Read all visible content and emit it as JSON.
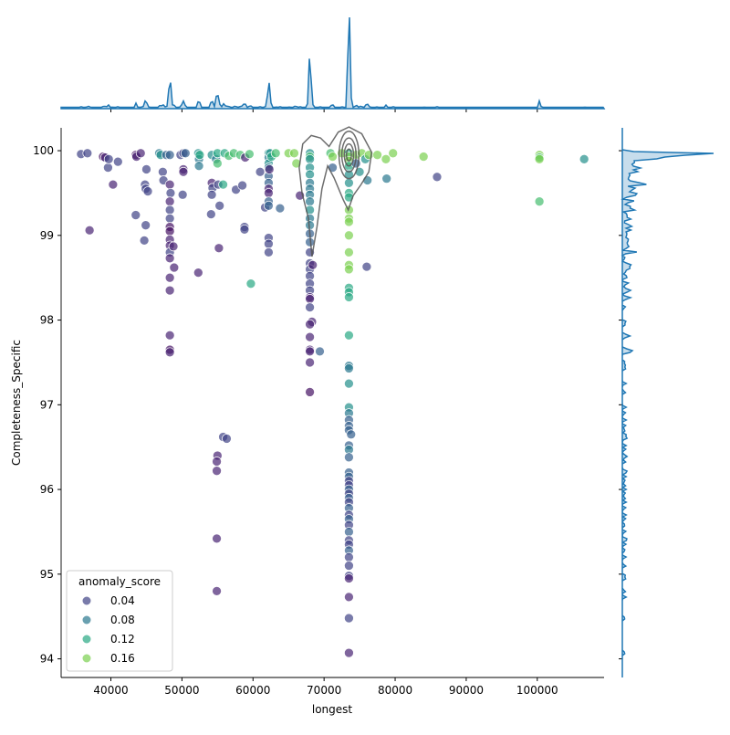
{
  "chart_data": {
    "type": "scatter",
    "xlabel": "longest",
    "ylabel": "Completeness_Specific",
    "xlim": [
      33000,
      109400
    ],
    "ylim": [
      93.78,
      100.27
    ],
    "xticks": [
      40000,
      50000,
      60000,
      70000,
      80000,
      90000,
      100000
    ],
    "xtick_labels": [
      "40000",
      "50000",
      "60000",
      "70000",
      "80000",
      "90000",
      "100000"
    ],
    "yticks": [
      94,
      95,
      96,
      97,
      98,
      99,
      100
    ],
    "ytick_labels": [
      "94",
      "95",
      "96",
      "97",
      "98",
      "99",
      "100"
    ],
    "grid": false,
    "colormap": "viridis",
    "hue_range": [
      0,
      0.2
    ],
    "legend": {
      "title": "anomaly_score",
      "placement": "lower-left",
      "entries": [
        {
          "label": "0.04",
          "value": 0.04
        },
        {
          "label": "0.08",
          "value": 0.08
        },
        {
          "label": "0.12",
          "value": 0.12
        },
        {
          "label": "0.16",
          "value": 0.16
        }
      ]
    },
    "kde_line_color": "#1f77b4",
    "contour_color": "#555555",
    "points": [
      [
        35800,
        99.96,
        0.04
      ],
      [
        36700,
        99.97,
        0.04
      ],
      [
        37000,
        99.06,
        0.02
      ],
      [
        38900,
        99.93,
        0.01
      ],
      [
        39200,
        99.92,
        0.02
      ],
      [
        39600,
        99.8,
        0.04
      ],
      [
        39700,
        99.9,
        0.04
      ],
      [
        40300,
        99.6,
        0.02
      ],
      [
        41000,
        99.87,
        0.04
      ],
      [
        43500,
        99.95,
        0.01
      ],
      [
        43600,
        99.93,
        0.02
      ],
      [
        43500,
        99.24,
        0.04
      ],
      [
        44200,
        99.97,
        0.02
      ],
      [
        44800,
        99.6,
        0.04
      ],
      [
        44900,
        99.55,
        0.04
      ],
      [
        44700,
        98.94,
        0.04
      ],
      [
        44900,
        99.12,
        0.04
      ],
      [
        45000,
        99.78,
        0.04
      ],
      [
        45200,
        99.52,
        0.04
      ],
      [
        46800,
        99.97,
        0.08
      ],
      [
        47000,
        99.95,
        0.1
      ],
      [
        47300,
        99.75,
        0.04
      ],
      [
        47400,
        99.65,
        0.04
      ],
      [
        47800,
        99.95,
        0.06
      ],
      [
        48300,
        99.95,
        0.06
      ],
      [
        48300,
        99.6,
        0.02
      ],
      [
        48400,
        99.5,
        0.04
      ],
      [
        48300,
        99.4,
        0.02
      ],
      [
        48300,
        99.3,
        0.04
      ],
      [
        48300,
        99.2,
        0.04
      ],
      [
        48300,
        99.1,
        0.01
      ],
      [
        48300,
        99.05,
        0.01
      ],
      [
        48300,
        98.95,
        0.02
      ],
      [
        48300,
        98.88,
        0.02
      ],
      [
        48300,
        98.8,
        0.04
      ],
      [
        48300,
        98.73,
        0.02
      ],
      [
        48300,
        98.5,
        0.02
      ],
      [
        48300,
        98.35,
        0.02
      ],
      [
        48300,
        97.82,
        0.02
      ],
      [
        48300,
        97.65,
        0.01
      ],
      [
        48300,
        97.62,
        0.02
      ],
      [
        48800,
        98.87,
        0.02
      ],
      [
        48900,
        98.62,
        0.02
      ],
      [
        49800,
        99.95,
        0.04
      ],
      [
        50200,
        99.97,
        0.04
      ],
      [
        50100,
        99.48,
        0.04
      ],
      [
        50200,
        99.78,
        0.02
      ],
      [
        50200,
        99.75,
        0.02
      ],
      [
        50500,
        99.97,
        0.06
      ],
      [
        52300,
        99.97,
        0.1
      ],
      [
        52400,
        99.9,
        0.08
      ],
      [
        52400,
        99.82,
        0.08
      ],
      [
        52300,
        98.56,
        0.02
      ],
      [
        52500,
        99.95,
        0.12
      ],
      [
        54200,
        99.95,
        0.1
      ],
      [
        54200,
        99.62,
        0.02
      ],
      [
        54300,
        99.56,
        0.04
      ],
      [
        54200,
        99.48,
        0.04
      ],
      [
        54100,
        99.25,
        0.04
      ],
      [
        54800,
        99.9,
        0.08
      ],
      [
        55000,
        99.97,
        0.12
      ],
      [
        55000,
        99.85,
        0.14
      ],
      [
        55100,
        99.6,
        0.04
      ],
      [
        55300,
        99.35,
        0.04
      ],
      [
        55200,
        98.85,
        0.02
      ],
      [
        55000,
        96.4,
        0.02
      ],
      [
        54900,
        96.33,
        0.02
      ],
      [
        54900,
        96.22,
        0.02
      ],
      [
        54900,
        95.42,
        0.02
      ],
      [
        54900,
        94.8,
        0.02
      ],
      [
        55800,
        99.6,
        0.12
      ],
      [
        55800,
        96.62,
        0.04
      ],
      [
        56300,
        96.6,
        0.04
      ],
      [
        56000,
        99.97,
        0.12
      ],
      [
        56600,
        99.94,
        0.14
      ],
      [
        57300,
        99.97,
        0.14
      ],
      [
        57600,
        99.54,
        0.04
      ],
      [
        58200,
        99.95,
        0.14
      ],
      [
        58500,
        99.59,
        0.04
      ],
      [
        58800,
        99.1,
        0.04
      ],
      [
        58800,
        99.07,
        0.04
      ],
      [
        58900,
        99.92,
        0.02
      ],
      [
        59500,
        99.96,
        0.14
      ],
      [
        59700,
        98.43,
        0.12
      ],
      [
        61000,
        99.75,
        0.04
      ],
      [
        61700,
        99.33,
        0.04
      ],
      [
        62200,
        99.97,
        0.1
      ],
      [
        62200,
        99.92,
        0.08
      ],
      [
        62200,
        99.85,
        0.1
      ],
      [
        62200,
        99.8,
        0.08
      ],
      [
        62200,
        99.7,
        0.06
      ],
      [
        62200,
        99.62,
        0.06
      ],
      [
        62200,
        99.55,
        0.02
      ],
      [
        62200,
        99.5,
        0.02
      ],
      [
        62200,
        99.4,
        0.06
      ],
      [
        62200,
        99.35,
        0.06
      ],
      [
        62200,
        98.97,
        0.04
      ],
      [
        62200,
        98.9,
        0.04
      ],
      [
        62200,
        98.8,
        0.04
      ],
      [
        62400,
        99.97,
        0.1
      ],
      [
        62600,
        99.93,
        0.12
      ],
      [
        62300,
        99.78,
        0.02
      ],
      [
        63200,
        99.97,
        0.14
      ],
      [
        63800,
        99.32,
        0.06
      ],
      [
        65000,
        99.97,
        0.16
      ],
      [
        65800,
        99.97,
        0.16
      ],
      [
        66100,
        99.85,
        0.16
      ],
      [
        66600,
        99.47,
        0.02
      ],
      [
        68000,
        99.97,
        0.1
      ],
      [
        68000,
        99.93,
        0.14
      ],
      [
        68000,
        99.9,
        0.1
      ],
      [
        68000,
        99.8,
        0.1
      ],
      [
        68000,
        99.72,
        0.1
      ],
      [
        68000,
        99.62,
        0.08
      ],
      [
        68000,
        99.55,
        0.08
      ],
      [
        68000,
        99.48,
        0.08
      ],
      [
        68000,
        99.4,
        0.08
      ],
      [
        68000,
        99.3,
        0.1
      ],
      [
        68000,
        99.2,
        0.08
      ],
      [
        68000,
        99.12,
        0.08
      ],
      [
        68000,
        99.02,
        0.06
      ],
      [
        68000,
        98.92,
        0.06
      ],
      [
        68000,
        98.8,
        0.04
      ],
      [
        68000,
        98.67,
        0.04
      ],
      [
        68000,
        98.6,
        0.04
      ],
      [
        68000,
        98.52,
        0.04
      ],
      [
        68000,
        98.43,
        0.04
      ],
      [
        68000,
        98.35,
        0.04
      ],
      [
        68000,
        98.27,
        0.02
      ],
      [
        68000,
        98.25,
        0.02
      ],
      [
        68000,
        98.15,
        0.04
      ],
      [
        68300,
        97.98,
        0.02
      ],
      [
        68000,
        97.95,
        0.02
      ],
      [
        68000,
        97.8,
        0.02
      ],
      [
        68000,
        97.65,
        0.02
      ],
      [
        68000,
        97.63,
        0.02
      ],
      [
        68000,
        97.5,
        0.02
      ],
      [
        68000,
        97.15,
        0.01
      ],
      [
        68400,
        98.65,
        0.02
      ],
      [
        69400,
        97.63,
        0.06
      ],
      [
        70900,
        99.97,
        0.14
      ],
      [
        71200,
        99.93,
        0.16
      ],
      [
        71200,
        99.8,
        0.06
      ],
      [
        72500,
        99.97,
        0.16
      ],
      [
        73500,
        99.97,
        0.12
      ],
      [
        73500,
        99.93,
        0.16
      ],
      [
        73500,
        99.88,
        0.16
      ],
      [
        73500,
        99.82,
        0.12
      ],
      [
        73500,
        99.72,
        0.1
      ],
      [
        73500,
        99.62,
        0.1
      ],
      [
        73500,
        99.5,
        0.12
      ],
      [
        73500,
        99.45,
        0.12
      ],
      [
        73500,
        99.3,
        0.16
      ],
      [
        73500,
        99.2,
        0.16
      ],
      [
        73500,
        99.16,
        0.16
      ],
      [
        73500,
        99.0,
        0.16
      ],
      [
        73500,
        98.8,
        0.16
      ],
      [
        73500,
        98.65,
        0.16
      ],
      [
        73500,
        98.6,
        0.16
      ],
      [
        73500,
        98.38,
        0.12
      ],
      [
        73500,
        98.33,
        0.12
      ],
      [
        73500,
        98.27,
        0.12
      ],
      [
        73500,
        97.82,
        0.12
      ],
      [
        73500,
        97.46,
        0.08
      ],
      [
        73500,
        97.43,
        0.08
      ],
      [
        73500,
        97.25,
        0.1
      ],
      [
        73500,
        96.97,
        0.1
      ],
      [
        73500,
        96.9,
        0.08
      ],
      [
        73500,
        96.82,
        0.06
      ],
      [
        73500,
        96.75,
        0.06
      ],
      [
        73500,
        96.7,
        0.06
      ],
      [
        73800,
        96.65,
        0.06
      ],
      [
        73500,
        96.52,
        0.06
      ],
      [
        73500,
        96.47,
        0.08
      ],
      [
        73500,
        96.38,
        0.06
      ],
      [
        73500,
        96.2,
        0.06
      ],
      [
        73500,
        96.15,
        0.06
      ],
      [
        73500,
        96.1,
        0.04
      ],
      [
        73500,
        96.05,
        0.04
      ],
      [
        73500,
        96.0,
        0.06
      ],
      [
        73500,
        95.95,
        0.04
      ],
      [
        73500,
        95.9,
        0.06
      ],
      [
        73500,
        95.85,
        0.04
      ],
      [
        73500,
        95.78,
        0.06
      ],
      [
        73500,
        95.7,
        0.04
      ],
      [
        73500,
        95.65,
        0.06
      ],
      [
        73500,
        95.58,
        0.04
      ],
      [
        73500,
        95.5,
        0.06
      ],
      [
        73500,
        95.4,
        0.04
      ],
      [
        73500,
        95.35,
        0.04
      ],
      [
        73500,
        95.28,
        0.06
      ],
      [
        73500,
        95.2,
        0.04
      ],
      [
        73500,
        95.1,
        0.04
      ],
      [
        73500,
        94.98,
        0.04
      ],
      [
        73500,
        94.95,
        0.02
      ],
      [
        73500,
        94.73,
        0.02
      ],
      [
        73500,
        94.48,
        0.04
      ],
      [
        73500,
        94.07,
        0.02
      ],
      [
        74500,
        99.95,
        0.16
      ],
      [
        74500,
        99.85,
        0.06
      ],
      [
        75000,
        99.75,
        0.1
      ],
      [
        75300,
        99.97,
        0.16
      ],
      [
        75800,
        99.9,
        0.1
      ],
      [
        76100,
        99.65,
        0.08
      ],
      [
        76000,
        98.63,
        0.04
      ],
      [
        76300,
        99.95,
        0.16
      ],
      [
        77500,
        99.95,
        0.16
      ],
      [
        78700,
        99.9,
        0.16
      ],
      [
        78800,
        99.67,
        0.08
      ],
      [
        79700,
        99.97,
        0.16
      ],
      [
        84000,
        99.93,
        0.16
      ],
      [
        85900,
        99.69,
        0.04
      ],
      [
        100300,
        99.95,
        0.16
      ],
      [
        100300,
        99.92,
        0.14
      ],
      [
        100300,
        99.9,
        0.16
      ],
      [
        100300,
        99.4,
        0.14
      ],
      [
        106600,
        99.9,
        0.1
      ]
    ],
    "contours": [
      {
        "level": "outer",
        "points": [
          [
            67800,
            99.2
          ],
          [
            66900,
            99.5
          ],
          [
            66500,
            99.8
          ],
          [
            67000,
            100.08
          ],
          [
            68200,
            100.18
          ],
          [
            69500,
            100.15
          ],
          [
            70700,
            100.05
          ],
          [
            72000,
            100.22
          ],
          [
            73500,
            100.28
          ],
          [
            75300,
            100.2
          ],
          [
            76700,
            99.98
          ],
          [
            76300,
            99.75
          ],
          [
            75200,
            99.6
          ],
          [
            74100,
            99.47
          ],
          [
            73400,
            99.3
          ],
          [
            72700,
            99.42
          ],
          [
            71400,
            99.68
          ],
          [
            70500,
            99.82
          ],
          [
            69700,
            99.55
          ],
          [
            69000,
            99.1
          ],
          [
            68300,
            98.75
          ],
          [
            67800,
            99.2
          ]
        ]
      },
      {
        "level": "inner-1",
        "center": [
          73500,
          99.95
        ],
        "rx": 1400,
        "ry": 0.28
      },
      {
        "level": "inner-2",
        "center": [
          73500,
          99.95
        ],
        "rx": 1000,
        "ry": 0.2
      },
      {
        "level": "inner-3",
        "center": [
          73500,
          99.95
        ],
        "rx": 650,
        "ry": 0.13
      },
      {
        "level": "inner-4",
        "center": [
          73500,
          99.95
        ],
        "rx": 350,
        "ry": 0.07
      }
    ]
  }
}
